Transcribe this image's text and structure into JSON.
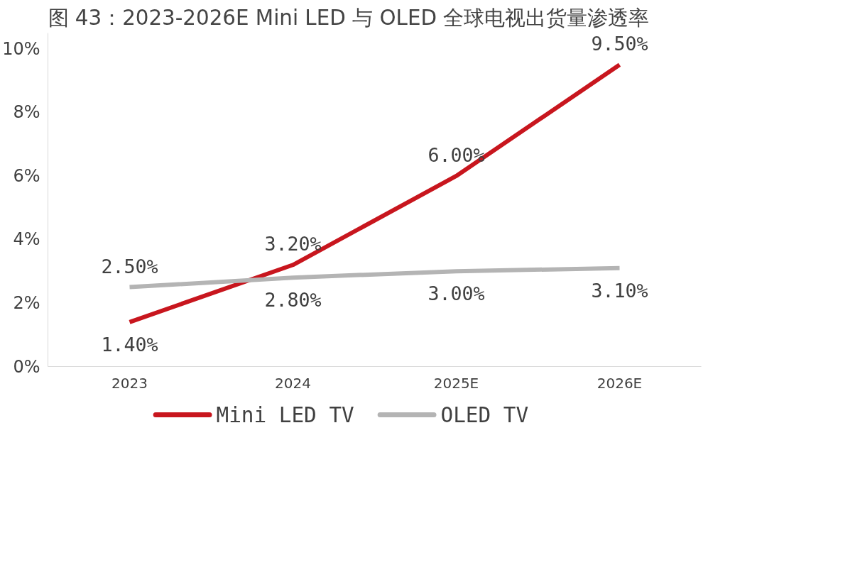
{
  "chart_data": {
    "type": "line",
    "title": "图 43：2023-2026E Mini LED 与 OLED 全球电视出货量渗透率",
    "categories": [
      "2023",
      "2024",
      "2025E",
      "2026E"
    ],
    "series": [
      {
        "name": "Mini LED TV",
        "color": "#c8161e",
        "values": [
          1.4,
          3.2,
          6.0,
          9.5
        ],
        "value_labels": [
          "1.40%",
          "3.20%",
          "6.00%",
          "9.50%"
        ]
      },
      {
        "name": "OLED TV",
        "color": "#b4b4b4",
        "values": [
          2.5,
          2.8,
          3.0,
          3.1
        ],
        "value_labels": [
          "2.50%",
          "2.80%",
          "3.00%",
          "3.10%"
        ]
      }
    ],
    "ylim": [
      0,
      10.5
    ],
    "yticks": [
      {
        "value": 0,
        "label": "0%"
      },
      {
        "value": 2,
        "label": "2%"
      },
      {
        "value": 4,
        "label": "4%"
      },
      {
        "value": 6,
        "label": "6%"
      },
      {
        "value": 8,
        "label": "8%"
      },
      {
        "value": 10,
        "label": "10%"
      }
    ],
    "grid": false,
    "legend": "bottom",
    "marker": "none",
    "line_style": "solid"
  }
}
